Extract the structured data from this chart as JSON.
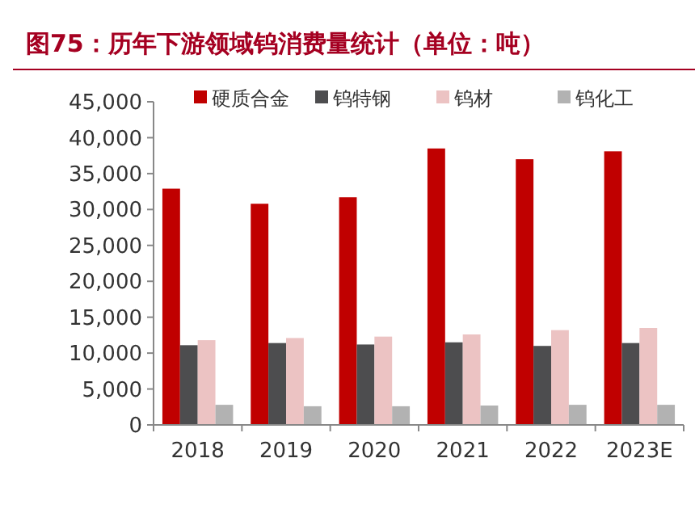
{
  "chart_data": {
    "type": "bar",
    "title": "图75：历年下游领域钨消费量统计（单位：吨）",
    "categories": [
      "2018",
      "2019",
      "2020",
      "2021",
      "2022",
      "2023E"
    ],
    "series": [
      {
        "name": "硬质合金",
        "color": "#c00000",
        "values": [
          32900,
          30800,
          31700,
          38500,
          37000,
          38100
        ]
      },
      {
        "name": "钨特钢",
        "color": "#4d4d4f",
        "values": [
          11100,
          11400,
          11200,
          11500,
          11000,
          11400
        ]
      },
      {
        "name": "钨材",
        "color": "#ecc3c3",
        "values": [
          11800,
          12100,
          12300,
          12600,
          13200,
          13500
        ]
      },
      {
        "name": "钨化工",
        "color": "#b2b2b2",
        "values": [
          2800,
          2600,
          2600,
          2700,
          2800,
          2800
        ]
      }
    ],
    "ylim": [
      0,
      45000
    ],
    "yticks": [
      {
        "value": 0,
        "label": "0"
      },
      {
        "value": 5000,
        "label": "5,000"
      },
      {
        "value": 10000,
        "label": "10,000"
      },
      {
        "value": 15000,
        "label": "15,000"
      },
      {
        "value": 20000,
        "label": "20,000"
      },
      {
        "value": 25000,
        "label": "25,000"
      },
      {
        "value": 30000,
        "label": "30,000"
      },
      {
        "value": 35000,
        "label": "35,000"
      },
      {
        "value": 40000,
        "label": "40,000"
      },
      {
        "value": 45000,
        "label": "45,000"
      }
    ],
    "legend": "top",
    "grid": false
  }
}
